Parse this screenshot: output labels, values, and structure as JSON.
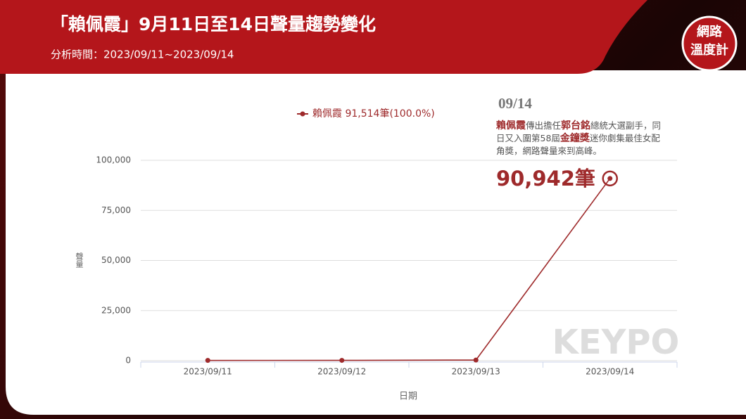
{
  "header": {
    "title": "「賴佩霞」9月11日至14日聲量趨勢變化",
    "subtitle": "分析時間：2023/09/11~2023/09/14",
    "logo": [
      "網路",
      "溫度計"
    ],
    "watermark": "KEYPO"
  },
  "chart_data": {
    "type": "line",
    "categories": [
      "2023/09/11",
      "2023/09/12",
      "2023/09/13",
      "2023/09/14"
    ],
    "series": [
      {
        "name": "賴佩霞",
        "legend_detail": "91,514筆(100.0%)",
        "color": "#9e2a2b",
        "values": [
          120,
          150,
          302,
          90942
        ],
        "value_labels": [
          null,
          null,
          null,
          "90,942筆"
        ]
      }
    ],
    "ylim": [
      0,
      100000
    ],
    "yticks": [
      0,
      {
        "value": 25000,
        "label": "25,000"
      },
      {
        "value": 50000,
        "label": "50,000"
      },
      {
        "value": 75000,
        "label": "75,000"
      },
      {
        "value": 100000,
        "label": "100,000"
      }
    ],
    "y_label": "聲量",
    "x_label": "日期",
    "grid": true,
    "annotation": {
      "date": "09/14",
      "parts": [
        "賴佩霞",
        "傳出擔任",
        "郭台銘",
        "總統大選副手，同日又入圍第58屆",
        "金鐘獎",
        "迷你劇集最佳女配角獎，網路聲量來到高峰。"
      ]
    }
  }
}
